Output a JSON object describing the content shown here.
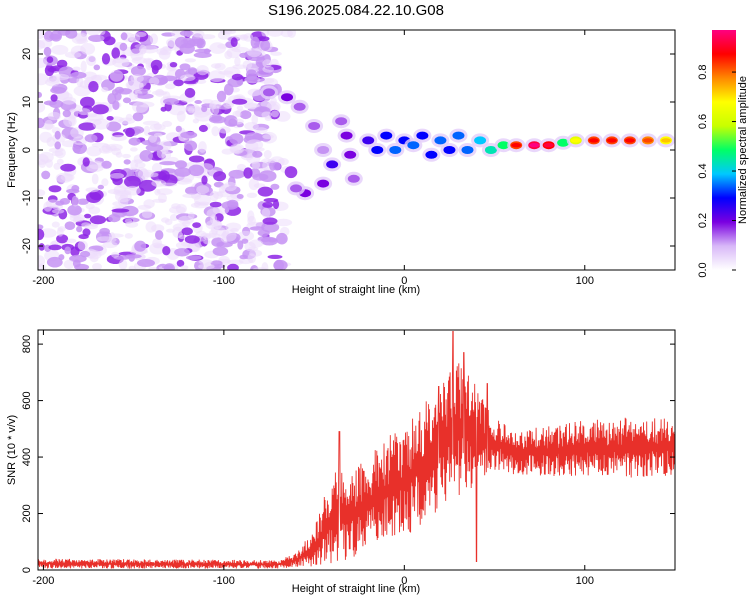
{
  "title": "S196.2025.084.22.10.G08",
  "chart_data": [
    {
      "type": "heatmap",
      "xlabel": "Height of straight line (km)",
      "ylabel": "Frequency (Hz)",
      "xlim": [
        -203,
        150
      ],
      "ylim": [
        -25,
        25
      ],
      "xticks": [
        -200,
        -100,
        0,
        100
      ],
      "yticks": [
        -20,
        -10,
        0,
        10,
        20
      ],
      "colorbar": {
        "label": "Normalized spectral amplitude",
        "range": [
          0.0,
          0.97
        ],
        "ticks": [
          0.0,
          0.2,
          0.4,
          0.6,
          0.8
        ],
        "colormap": [
          "#ffffff",
          "#d8b8f8",
          "#7a00e0",
          "#0000ff",
          "#00c8ff",
          "#00ff66",
          "#c8ff00",
          "#ffff00",
          "#ff8800",
          "#ff0000",
          "#ff0080"
        ]
      },
      "noise_region_x": [
        -203,
        -70
      ],
      "trace": [
        {
          "x": -75,
          "y": 12,
          "a": 0.15
        },
        {
          "x": -65,
          "y": 11,
          "a": 0.2
        },
        {
          "x": -58,
          "y": 9,
          "a": 0.15
        },
        {
          "x": -50,
          "y": 5,
          "a": 0.15
        },
        {
          "x": -45,
          "y": 0,
          "a": 0.12
        },
        {
          "x": -40,
          "y": -3,
          "a": 0.25
        },
        {
          "x": -45,
          "y": -7,
          "a": 0.2
        },
        {
          "x": -55,
          "y": -9,
          "a": 0.2
        },
        {
          "x": -60,
          "y": -8,
          "a": 0.15
        },
        {
          "x": -35,
          "y": 6,
          "a": 0.15
        },
        {
          "x": -32,
          "y": 3,
          "a": 0.2
        },
        {
          "x": -30,
          "y": -1,
          "a": 0.2
        },
        {
          "x": -28,
          "y": -6,
          "a": 0.15
        },
        {
          "x": -20,
          "y": 2,
          "a": 0.25
        },
        {
          "x": -15,
          "y": 0,
          "a": 0.3
        },
        {
          "x": -10,
          "y": 3,
          "a": 0.3
        },
        {
          "x": -5,
          "y": 0,
          "a": 0.35
        },
        {
          "x": 0,
          "y": 2,
          "a": 0.3
        },
        {
          "x": 5,
          "y": 1,
          "a": 0.35
        },
        {
          "x": 10,
          "y": 3,
          "a": 0.3
        },
        {
          "x": 15,
          "y": -1,
          "a": 0.3
        },
        {
          "x": 20,
          "y": 2,
          "a": 0.35
        },
        {
          "x": 25,
          "y": 0,
          "a": 0.3
        },
        {
          "x": 30,
          "y": 3,
          "a": 0.35
        },
        {
          "x": 35,
          "y": 0,
          "a": 0.35
        },
        {
          "x": 42,
          "y": 2,
          "a": 0.4
        },
        {
          "x": 48,
          "y": 0,
          "a": 0.45
        },
        {
          "x": 55,
          "y": 1,
          "a": 0.5
        },
        {
          "x": 62,
          "y": 1,
          "a": 0.85
        },
        {
          "x": 72,
          "y": 1,
          "a": 0.95
        },
        {
          "x": 80,
          "y": 1,
          "a": 0.9
        },
        {
          "x": 88,
          "y": 1.5,
          "a": 0.5
        },
        {
          "x": 95,
          "y": 2,
          "a": 0.65
        },
        {
          "x": 105,
          "y": 2,
          "a": 0.85
        },
        {
          "x": 115,
          "y": 2,
          "a": 0.85
        },
        {
          "x": 125,
          "y": 2,
          "a": 0.85
        },
        {
          "x": 135,
          "y": 2,
          "a": 0.8
        },
        {
          "x": 145,
          "y": 2,
          "a": 0.7
        }
      ]
    },
    {
      "type": "line",
      "xlabel": "Height of straight line (km)",
      "ylabel": "SNR (10 * v/v)",
      "xlim": [
        -203,
        150
      ],
      "ylim": [
        0,
        850
      ],
      "xticks": [
        -200,
        -100,
        0,
        100
      ],
      "yticks": [
        0,
        200,
        400,
        600,
        800
      ],
      "color": "#e8302a",
      "envelope": [
        {
          "x": -203,
          "low": 5,
          "high": 40
        },
        {
          "x": -70,
          "low": 5,
          "high": 35
        },
        {
          "x": -60,
          "low": 10,
          "high": 60
        },
        {
          "x": -50,
          "low": 10,
          "high": 150
        },
        {
          "x": -40,
          "low": 15,
          "high": 350
        },
        {
          "x": -30,
          "low": 30,
          "high": 350
        },
        {
          "x": -20,
          "low": 60,
          "high": 400
        },
        {
          "x": -10,
          "low": 80,
          "high": 480
        },
        {
          "x": 0,
          "low": 120,
          "high": 500
        },
        {
          "x": 10,
          "low": 150,
          "high": 600
        },
        {
          "x": 20,
          "low": 200,
          "high": 650
        },
        {
          "x": 30,
          "low": 250,
          "high": 750
        },
        {
          "x": 40,
          "low": 300,
          "high": 650
        },
        {
          "x": 50,
          "low": 350,
          "high": 550
        },
        {
          "x": 60,
          "low": 340,
          "high": 500
        },
        {
          "x": 80,
          "low": 330,
          "high": 510
        },
        {
          "x": 100,
          "low": 330,
          "high": 530
        },
        {
          "x": 120,
          "low": 320,
          "high": 540
        },
        {
          "x": 150,
          "low": 330,
          "high": 540
        }
      ],
      "spikes": [
        {
          "x": -36,
          "y": 490
        },
        {
          "x": 19,
          "y": 650
        },
        {
          "x": 27,
          "y": 845
        },
        {
          "x": 33,
          "y": 770
        },
        {
          "x": 46,
          "y": 660
        },
        {
          "x": 40,
          "y": 30
        }
      ]
    }
  ]
}
